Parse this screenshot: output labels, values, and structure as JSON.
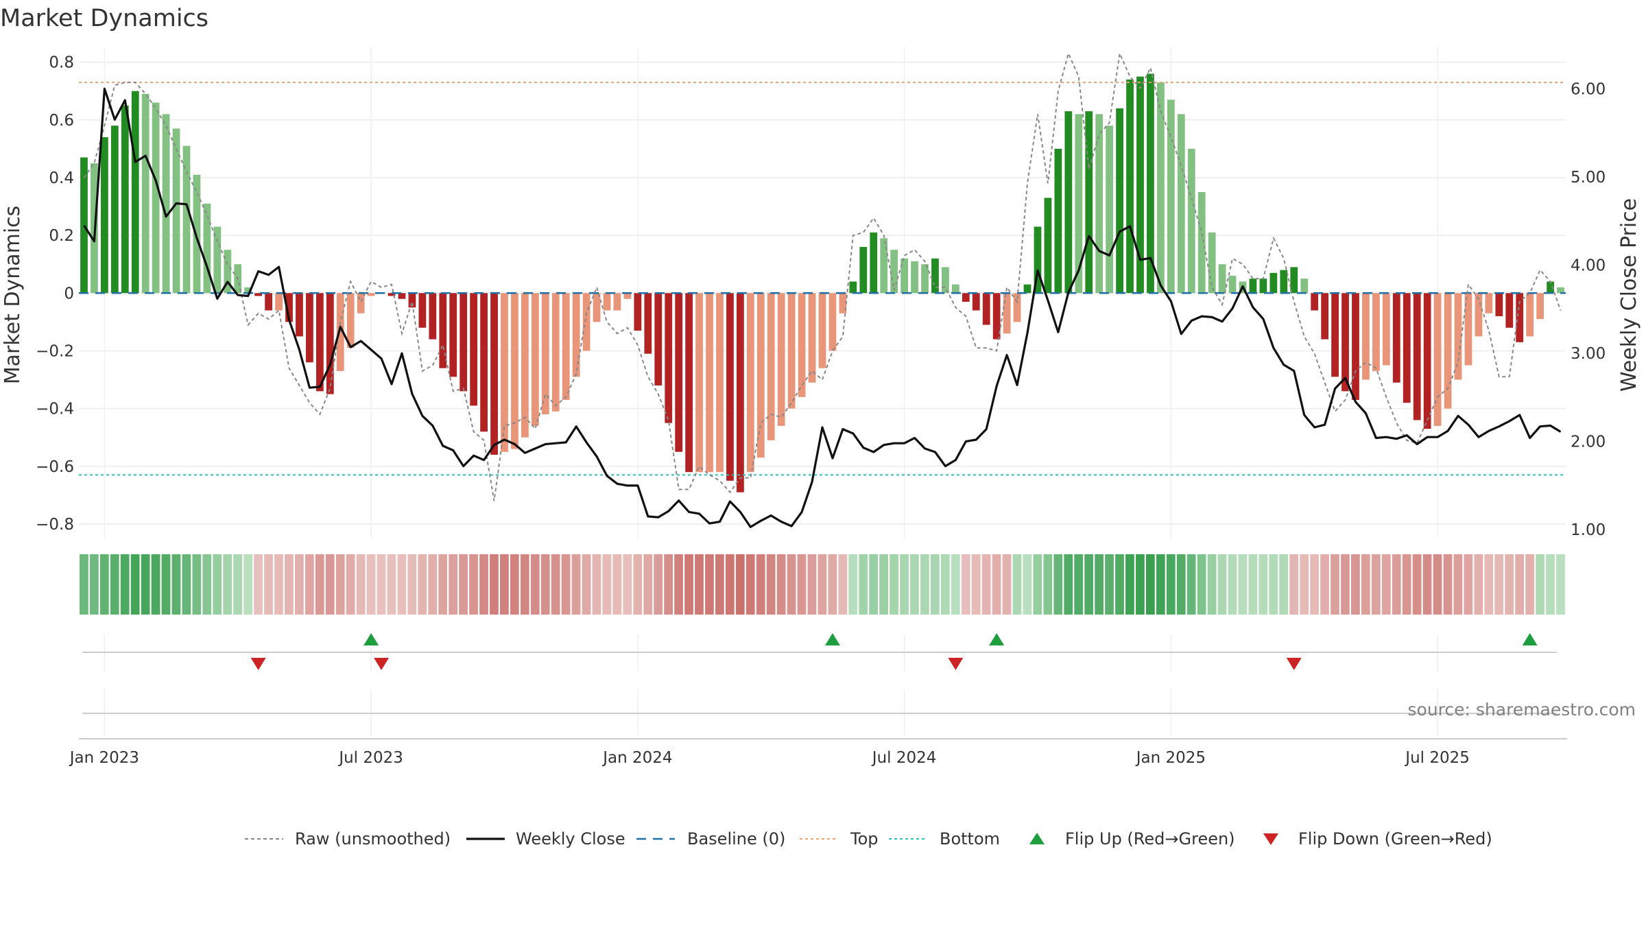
{
  "chart_data": {
    "type": "bar",
    "title": "Market Dynamics",
    "ylabel_left": "Market Dynamics",
    "ylabel_right": "Weekly Close Price",
    "source": "source: sharemaestro.com",
    "ylim_left": [
      -0.85,
      0.83
    ],
    "ylim_right": [
      0.9,
      6.4
    ],
    "left_ticks": [
      {
        "value": 0.8,
        "label": "0.8"
      },
      {
        "value": 0.6,
        "label": "0.6"
      },
      {
        "value": 0.4,
        "label": "0.4"
      },
      {
        "value": 0.2,
        "label": "0.2"
      },
      {
        "value": 0,
        "label": "0"
      },
      {
        "value": -0.2,
        "label": "−0.2"
      },
      {
        "value": -0.4,
        "label": "−0.4"
      },
      {
        "value": -0.6,
        "label": "−0.6"
      },
      {
        "value": -0.8,
        "label": "−0.8"
      }
    ],
    "right_ticks": [
      {
        "value": 6.0,
        "label": "6.00"
      },
      {
        "value": 5.0,
        "label": "5.00"
      },
      {
        "value": 4.0,
        "label": "4.00"
      },
      {
        "value": 3.0,
        "label": "3.00"
      },
      {
        "value": 2.0,
        "label": "2.00"
      },
      {
        "value": 1.0,
        "label": "1.00"
      }
    ],
    "x_ticks": [
      {
        "week": 2,
        "label": "Jan 2023"
      },
      {
        "week": 28,
        "label": "Jul 2023"
      },
      {
        "week": 54,
        "label": "Jan 2024"
      },
      {
        "week": 80,
        "label": "Jul 2024"
      },
      {
        "week": 106,
        "label": "Jan 2025"
      },
      {
        "week": 132,
        "label": "Jul 2025"
      }
    ],
    "reference_lines": {
      "baseline": 0,
      "top": 0.73,
      "bottom": -0.63
    },
    "dynamics": [
      0.47,
      0.45,
      0.54,
      0.58,
      0.65,
      0.7,
      0.69,
      0.66,
      0.62,
      0.57,
      0.51,
      0.41,
      0.31,
      0.23,
      0.15,
      0.1,
      0.02,
      -0.01,
      -0.06,
      -0.06,
      -0.1,
      -0.15,
      -0.24,
      -0.34,
      -0.35,
      -0.27,
      -0.19,
      -0.07,
      -0.01,
      0,
      -0.01,
      -0.02,
      -0.05,
      -0.12,
      -0.16,
      -0.26,
      -0.29,
      -0.34,
      -0.39,
      -0.48,
      -0.56,
      -0.55,
      -0.54,
      -0.5,
      -0.46,
      -0.42,
      -0.41,
      -0.37,
      -0.29,
      -0.2,
      -0.1,
      -0.06,
      -0.06,
      -0.02,
      -0.13,
      -0.21,
      -0.32,
      -0.45,
      -0.55,
      -0.62,
      -0.62,
      -0.62,
      -0.62,
      -0.65,
      -0.69,
      -0.62,
      -0.57,
      -0.51,
      -0.46,
      -0.4,
      -0.36,
      -0.31,
      -0.26,
      -0.2,
      -0.07,
      0.04,
      0.16,
      0.21,
      0.19,
      0.15,
      0.12,
      0.11,
      0.1,
      0.12,
      0.09,
      0.03,
      -0.03,
      -0.06,
      -0.11,
      -0.16,
      -0.14,
      -0.1,
      0.03,
      0.23,
      0.33,
      0.5,
      0.63,
      0.62,
      0.63,
      0.62,
      0.58,
      0.64,
      0.74,
      0.75,
      0.76,
      0.73,
      0.67,
      0.62,
      0.5,
      0.35,
      0.21,
      0.1,
      0.06,
      0.04,
      0.05,
      0.05,
      0.07,
      0.08,
      0.09,
      0.05,
      -0.06,
      -0.16,
      -0.29,
      -0.34,
      -0.37,
      -0.3,
      -0.27,
      -0.25,
      -0.31,
      -0.38,
      -0.44,
      -0.47,
      -0.46,
      -0.4,
      -0.3,
      -0.25,
      -0.15,
      -0.07,
      -0.08,
      -0.12,
      -0.17,
      -0.15,
      -0.09,
      0.04,
      0.02
    ],
    "raw": [
      0.4,
      0.45,
      0.58,
      0.72,
      0.73,
      0.73,
      0.69,
      0.64,
      0.58,
      0.5,
      0.42,
      0.35,
      0.27,
      0.18,
      0.1,
      0.05,
      -0.11,
      -0.07,
      -0.09,
      -0.06,
      -0.26,
      -0.32,
      -0.38,
      -0.42,
      -0.33,
      -0.1,
      0.04,
      -0.03,
      0.04,
      0.02,
      0.03,
      -0.14,
      -0.03,
      -0.27,
      -0.25,
      -0.18,
      -0.34,
      -0.33,
      -0.48,
      -0.51,
      -0.72,
      -0.46,
      -0.45,
      -0.43,
      -0.47,
      -0.35,
      -0.39,
      -0.36,
      -0.28,
      -0.07,
      0.02,
      -0.1,
      -0.14,
      -0.12,
      -0.18,
      -0.29,
      -0.35,
      -0.44,
      -0.68,
      -0.68,
      -0.6,
      -0.63,
      -0.65,
      -0.69,
      -0.64,
      -0.64,
      -0.45,
      -0.42,
      -0.43,
      -0.38,
      -0.32,
      -0.27,
      -0.3,
      -0.2,
      -0.15,
      0.2,
      0.21,
      0.26,
      0.2,
      0.01,
      0.13,
      0.15,
      0.11,
      0.02,
      0.02,
      -0.05,
      -0.08,
      -0.19,
      -0.19,
      -0.2,
      0.02,
      -0.03,
      0.38,
      0.62,
      0.38,
      0.7,
      0.83,
      0.75,
      0.43,
      0.55,
      0.59,
      0.83,
      0.75,
      0.71,
      0.78,
      0.63,
      0.54,
      0.44,
      0.33,
      0.21,
      0.02,
      -0.04,
      0.12,
      0.1,
      0.05,
      0.05,
      0.19,
      0.12,
      -0.03,
      -0.15,
      -0.21,
      -0.31,
      -0.41,
      -0.37,
      -0.27,
      -0.24,
      -0.26,
      -0.36,
      -0.45,
      -0.51,
      -0.52,
      -0.44,
      -0.36,
      -0.33,
      -0.24,
      0.03,
      -0.02,
      -0.13,
      -0.29,
      -0.29,
      -0.03,
      0,
      0.08,
      0.04,
      -0.06
    ],
    "weekly_close": [
      4.45,
      4.27,
      6.0,
      5.65,
      5.87,
      5.17,
      5.24,
      4.96,
      4.55,
      4.7,
      4.69,
      4.31,
      3.98,
      3.62,
      3.81,
      3.66,
      3.65,
      3.93,
      3.89,
      3.98,
      3.38,
      3.04,
      2.61,
      2.62,
      2.87,
      3.3,
      3.07,
      3.14,
      3.04,
      2.94,
      2.65,
      3.0,
      2.54,
      2.29,
      2.18,
      1.95,
      1.9,
      1.72,
      1.84,
      1.79,
      1.96,
      2.02,
      1.97,
      1.87,
      1.92,
      1.97,
      1.98,
      1.99,
      2.17,
      1.99,
      1.83,
      1.61,
      1.52,
      1.5,
      1.5,
      1.15,
      1.14,
      1.21,
      1.33,
      1.2,
      1.18,
      1.07,
      1.09,
      1.32,
      1.2,
      1.03,
      1.1,
      1.16,
      1.09,
      1.04,
      1.2,
      1.54,
      2.16,
      1.81,
      2.14,
      2.09,
      1.93,
      1.88,
      1.96,
      1.98,
      1.98,
      2.04,
      1.92,
      1.88,
      1.72,
      1.79,
      2.0,
      2.02,
      2.14,
      2.63,
      2.98,
      2.64,
      3.23,
      3.94,
      3.6,
      3.24,
      3.69,
      3.94,
      4.33,
      4.16,
      4.11,
      4.38,
      4.44,
      4.06,
      4.08,
      3.77,
      3.59,
      3.22,
      3.37,
      3.42,
      3.41,
      3.36,
      3.51,
      3.76,
      3.52,
      3.39,
      3.06,
      2.87,
      2.8,
      2.3,
      2.16,
      2.19,
      2.6,
      2.72,
      2.45,
      2.32,
      2.04,
      2.05,
      2.03,
      2.07,
      1.97,
      2.05,
      2.05,
      2.12,
      2.29,
      2.19,
      2.05,
      2.12,
      2.17,
      2.23,
      2.3,
      2.04,
      2.17,
      2.18,
      2.11
    ],
    "regime_strip": [
      {
        "start": 0,
        "end": 16,
        "color": "green"
      },
      {
        "start": 17,
        "end": 28,
        "color": "red"
      },
      {
        "start": 29,
        "end": 74,
        "color": "red"
      },
      {
        "start": 75,
        "end": 85,
        "color": "green"
      },
      {
        "start": 86,
        "end": 90,
        "color": "red"
      },
      {
        "start": 91,
        "end": 117,
        "color": "green"
      },
      {
        "start": 118,
        "end": 141,
        "color": "red"
      },
      {
        "start": 142,
        "end": 144,
        "color": "green"
      }
    ],
    "flip_up_weeks": [
      28,
      73,
      89,
      141
    ],
    "flip_down_weeks": [
      17,
      29,
      85,
      118
    ],
    "colors": {
      "strong_green": "#228b22",
      "light_green": "#82c182",
      "strong_red": "#b22222",
      "light_red": "#e8957a",
      "weekly_close": "#111111",
      "raw": "#888888",
      "baseline": "#1f6fa8",
      "top": "#f0a070",
      "bottom": "#2bbfbf",
      "flip_up": "#1e9e3e",
      "flip_down": "#cc2424"
    },
    "legend": [
      {
        "key": "raw",
        "label": "Raw (unsmoothed)"
      },
      {
        "key": "weekly_close",
        "label": "Weekly Close"
      },
      {
        "key": "baseline",
        "label": "Baseline (0)"
      },
      {
        "key": "top",
        "label": "Top"
      },
      {
        "key": "bottom",
        "label": "Bottom"
      },
      {
        "key": "flip_up",
        "label": "Flip Up (Red→Green)"
      },
      {
        "key": "flip_down",
        "label": "Flip Down (Green→Red)"
      }
    ]
  }
}
